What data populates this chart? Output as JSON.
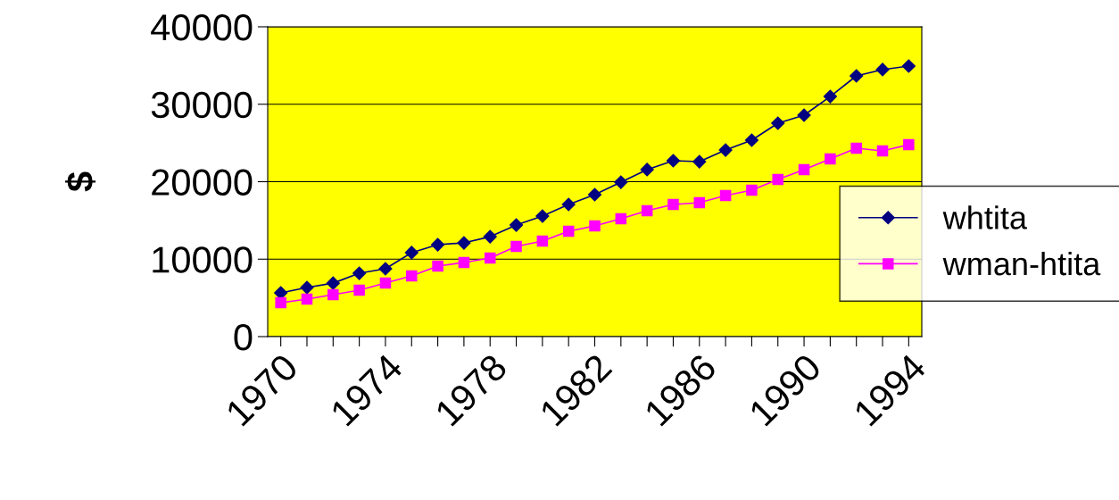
{
  "chart_data": {
    "type": "line",
    "ylabel": "$",
    "categories": [
      "1970",
      null,
      null,
      null,
      "1974",
      null,
      null,
      null,
      "1978",
      null,
      null,
      null,
      "1982",
      null,
      null,
      null,
      "1986",
      null,
      null,
      null,
      "1990",
      null,
      null,
      null,
      "1994"
    ],
    "series": [
      {
        "name": "whtita",
        "color": "#000080",
        "marker": "diamond",
        "values": [
          5650,
          6340,
          6900,
          8180,
          8760,
          10840,
          11870,
          12100,
          12900,
          14400,
          15560,
          17060,
          18330,
          19940,
          21560,
          22710,
          22590,
          24090,
          25360,
          27550,
          28590,
          31000,
          33660,
          34470,
          34930
        ]
      },
      {
        "name": "wman-htita",
        "color": "#ff00ff",
        "marker": "square",
        "values": [
          4380,
          4840,
          5420,
          5990,
          6920,
          7840,
          9110,
          9570,
          10140,
          11640,
          12330,
          13600,
          14290,
          15220,
          16250,
          17060,
          17290,
          18210,
          18900,
          20290,
          21560,
          22940,
          24320,
          23980,
          24780
        ]
      }
    ],
    "ylim": [
      0,
      40000
    ],
    "yticks": [
      0,
      10000,
      20000,
      30000,
      40000
    ],
    "grid": "y",
    "legend": "right",
    "line_style": "solid"
  }
}
